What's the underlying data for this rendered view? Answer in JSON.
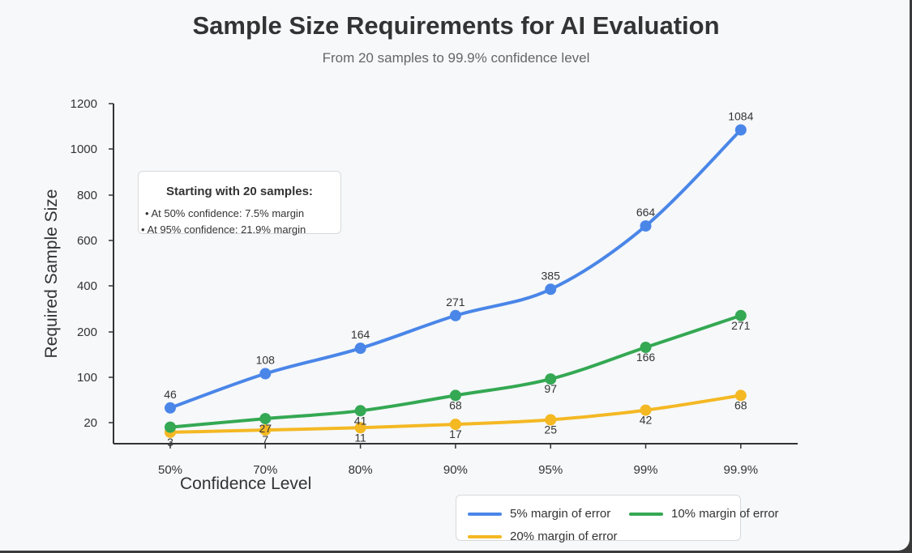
{
  "chart_data": {
    "type": "line",
    "title": "Sample Size Requirements for AI Evaluation",
    "subtitle": "From 20 samples to 99.9% confidence level",
    "xlabel": "Confidence Level",
    "ylabel": "Required Sample Size",
    "categories": [
      "50%",
      "70%",
      "80%",
      "90%",
      "95%",
      "99%",
      "99.9%"
    ],
    "y_ticks": [
      "1200",
      "1000",
      "800",
      "600",
      "400",
      "200",
      "100",
      "20"
    ],
    "series": [
      {
        "name": "5% margin of error",
        "color": "#4a86e8",
        "values": [
          46,
          108,
          164,
          271,
          385,
          664,
          1084
        ],
        "labels": [
          "46",
          "108",
          "164",
          "271",
          "385",
          "664",
          "1084"
        ]
      },
      {
        "name": "10% margin of error",
        "color": "#34a853",
        "values": [
          12,
          27,
          41,
          68,
          97,
          166,
          271
        ],
        "labels": [
          "",
          "27",
          "41",
          "68",
          "97",
          "166",
          "271"
        ]
      },
      {
        "name": "20% margin of error",
        "color": "#f4b823",
        "values": [
          3,
          7,
          11,
          17,
          25,
          42,
          68
        ],
        "labels": [
          "3",
          "7",
          "11",
          "17",
          "25",
          "42",
          "68"
        ]
      }
    ],
    "legend_position": "bottom-right",
    "grid": false
  },
  "annotation": {
    "title": "Starting with 20 samples:",
    "line1": "• At 50% confidence: 7.5% margin",
    "line2": "• At 95% confidence: 21.9% margin"
  }
}
